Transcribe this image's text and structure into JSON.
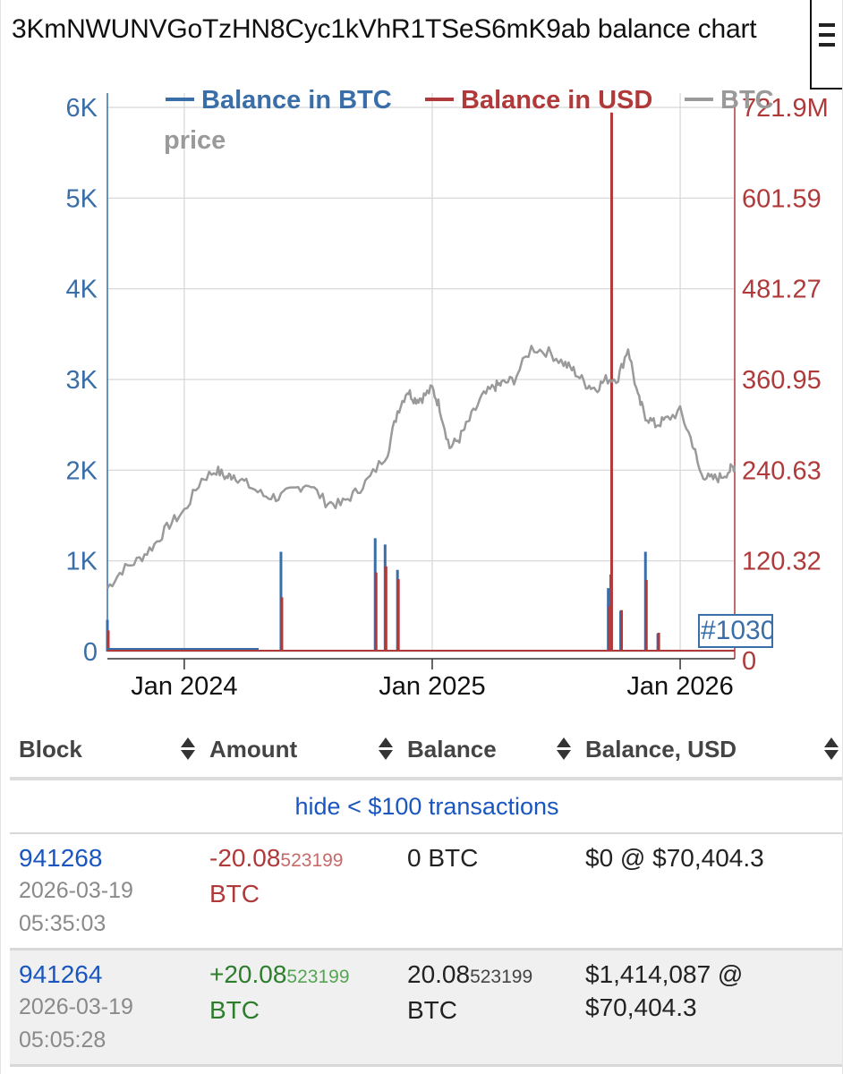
{
  "title": "3KmNWUNVGoTzHN8Cyc1kVhR1TSeS6mK9ab balance chart",
  "colors": {
    "btc": "#3a6ea8",
    "usd": "#b0393a",
    "price": "#9a9a9a",
    "link": "#1a56c0"
  },
  "legend": {
    "btc": "Balance in BTC",
    "usd": "Balance in USD",
    "price_line1": "BTC",
    "price_line2": "price"
  },
  "marker_label": "#1030",
  "chart_data": {
    "type": "line",
    "title": "3KmNWUNVGoTzHN8Cyc1kVhR1TSeS6mK9ab balance chart",
    "x_ticks": [
      "Jan 2024",
      "Jan 2025",
      "Jan 2026"
    ],
    "y_left": {
      "label": "Balance in BTC",
      "ticks": [
        "0",
        "1K",
        "2K",
        "3K",
        "4K",
        "5K",
        "6K"
      ],
      "range": [
        0,
        6000
      ]
    },
    "y_right": {
      "label": "Balance in USD",
      "ticks": [
        "0",
        "120.32",
        "240.63",
        "360.95",
        "481.27",
        "601.59",
        "721.9M"
      ],
      "range": [
        0,
        721.9
      ]
    },
    "price_series": {
      "name": "BTC price",
      "x": [
        2023.69,
        2023.75,
        2023.82,
        2023.88,
        2023.94,
        2024.0,
        2024.07,
        2024.13,
        2024.17,
        2024.2,
        2024.25,
        2024.32,
        2024.38,
        2024.44,
        2024.5,
        2024.57,
        2024.63,
        2024.69,
        2024.75,
        2024.82,
        2024.86,
        2024.9,
        2024.93,
        2024.96,
        2025.0,
        2025.03,
        2025.07,
        2025.11,
        2025.15,
        2025.2,
        2025.25,
        2025.28,
        2025.33,
        2025.4,
        2025.47,
        2025.53,
        2025.57,
        2025.62,
        2025.66,
        2025.7,
        2025.75,
        2025.79,
        2025.83,
        2025.86,
        2025.9,
        2025.94,
        2026.0,
        2026.05,
        2026.08,
        2026.12,
        2026.16,
        2026.2,
        2026.22
      ],
      "values_k": [
        0.7,
        0.9,
        1.02,
        1.18,
        1.4,
        1.55,
        1.9,
        2.0,
        1.92,
        1.95,
        1.85,
        1.72,
        1.7,
        1.78,
        1.86,
        1.65,
        1.62,
        1.75,
        1.92,
        2.2,
        2.65,
        2.88,
        2.78,
        2.8,
        2.9,
        2.7,
        2.25,
        2.35,
        2.55,
        2.8,
        2.92,
        2.95,
        3.0,
        3.35,
        3.3,
        3.18,
        3.1,
        2.95,
        2.9,
        3.0,
        3.02,
        3.35,
        2.8,
        2.6,
        2.5,
        2.55,
        2.65,
        2.3,
        1.98,
        1.9,
        1.92,
        2.0,
        2.05
      ]
    },
    "balance_spikes": [
      {
        "x": 2023.69,
        "btc_k": 0.35,
        "usd_m": 28
      },
      {
        "x": 2024.39,
        "btc_k": 1.1,
        "usd_m": 72
      },
      {
        "x": 2024.77,
        "btc_k": 1.25,
        "usd_m": 105
      },
      {
        "x": 2024.81,
        "btc_k": 1.18,
        "usd_m": 113
      },
      {
        "x": 2024.86,
        "btc_k": 0.9,
        "usd_m": 96
      },
      {
        "x": 2025.71,
        "btc_k": 0.7,
        "usd_m": 60
      },
      {
        "x": 2025.72,
        "btc_k": 0.85,
        "usd_m": 715
      },
      {
        "x": 2025.76,
        "btc_k": 0.45,
        "usd_m": 55
      },
      {
        "x": 2025.86,
        "btc_k": 1.1,
        "usd_m": 95
      },
      {
        "x": 2025.91,
        "btc_k": 0.2,
        "usd_m": 25
      }
    ]
  },
  "table": {
    "headers": [
      "Block",
      "Amount",
      "Balance",
      "Balance, USD"
    ],
    "hide_link": "hide < $100 transactions",
    "rows": [
      {
        "block": "941268",
        "date": "2026-03-19",
        "time": "05:35:03",
        "amount_main": "-20.08",
        "amount_small": "523199",
        "amount_unit": "BTC",
        "balance_main": "0 BTC",
        "balance_small": "",
        "balance_unit": "",
        "usd_line1": "$0 @ $70,404.3",
        "usd_line2": ""
      },
      {
        "block": "941264",
        "date": "2026-03-19",
        "time": "05:05:28",
        "amount_main": "+20.08",
        "amount_small": "523199",
        "amount_unit": "BTC",
        "balance_main": "20.08",
        "balance_small": "523199",
        "balance_unit": "BTC",
        "usd_line1": "$1,414,087 @",
        "usd_line2": "$70,404.3"
      }
    ]
  }
}
